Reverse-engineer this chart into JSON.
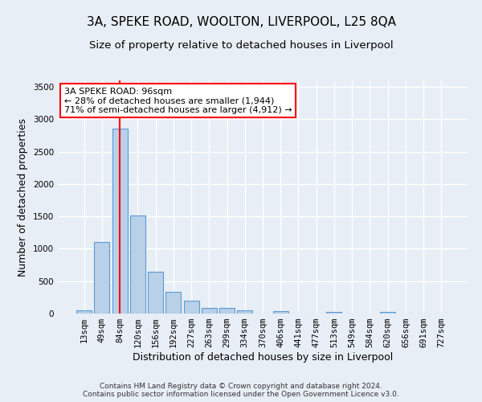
{
  "title": "3A, SPEKE ROAD, WOOLTON, LIVERPOOL, L25 8QA",
  "subtitle": "Size of property relative to detached houses in Liverpool",
  "xlabel": "Distribution of detached houses by size in Liverpool",
  "ylabel": "Number of detached properties",
  "categories": [
    "13sqm",
    "49sqm",
    "84sqm",
    "120sqm",
    "156sqm",
    "192sqm",
    "227sqm",
    "263sqm",
    "299sqm",
    "334sqm",
    "370sqm",
    "406sqm",
    "441sqm",
    "477sqm",
    "513sqm",
    "549sqm",
    "584sqm",
    "620sqm",
    "656sqm",
    "691sqm",
    "727sqm"
  ],
  "bar_heights": [
    50,
    1100,
    2850,
    1520,
    640,
    330,
    195,
    90,
    90,
    55,
    0,
    40,
    0,
    0,
    25,
    0,
    0,
    25,
    0,
    0,
    0
  ],
  "bar_color": "#b8d0e8",
  "bar_edge_color": "#5b9bd5",
  "vline_x": 2,
  "vline_color": "red",
  "ylim": [
    0,
    3600
  ],
  "yticks": [
    0,
    500,
    1000,
    1500,
    2000,
    2500,
    3000,
    3500
  ],
  "annotation_text": "3A SPEKE ROAD: 96sqm\n← 28% of detached houses are smaller (1,944)\n71% of semi-detached houses are larger (4,912) →",
  "annotation_box_color": "white",
  "annotation_box_edge_color": "red",
  "footer": "Contains HM Land Registry data © Crown copyright and database right 2024.\nContains public sector information licensed under the Open Government Licence v3.0.",
  "background_color": "#e8eef5",
  "grid_color": "white",
  "title_fontsize": 11,
  "subtitle_fontsize": 9.5,
  "ylabel_fontsize": 9,
  "xlabel_fontsize": 9,
  "tick_fontsize": 7.5,
  "annotation_fontsize": 8,
  "footer_fontsize": 6.5
}
